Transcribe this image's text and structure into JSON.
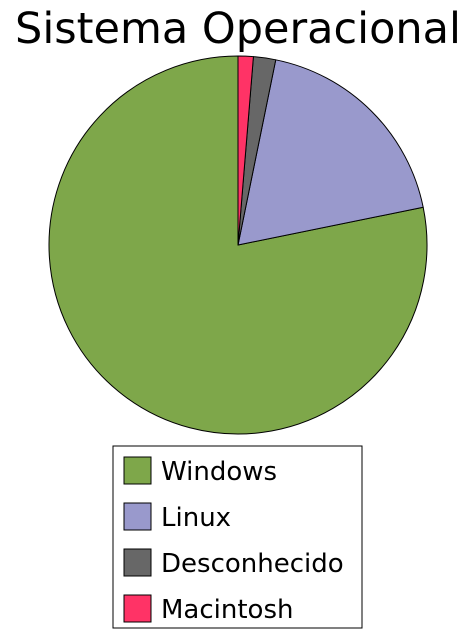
{
  "chart_data": {
    "type": "pie",
    "title": "Sistema Operacional",
    "legend_position": "bottom",
    "slices": [
      {
        "label": "Windows",
        "value": 78.2,
        "color": "#7ea74a"
      },
      {
        "label": "Linux",
        "value": 18.6,
        "color": "#9999cc"
      },
      {
        "label": "Desconhecido",
        "value": 1.9,
        "color": "#676767"
      },
      {
        "label": "Macintosh",
        "value": 1.3,
        "color": "#ff3366"
      }
    ]
  }
}
